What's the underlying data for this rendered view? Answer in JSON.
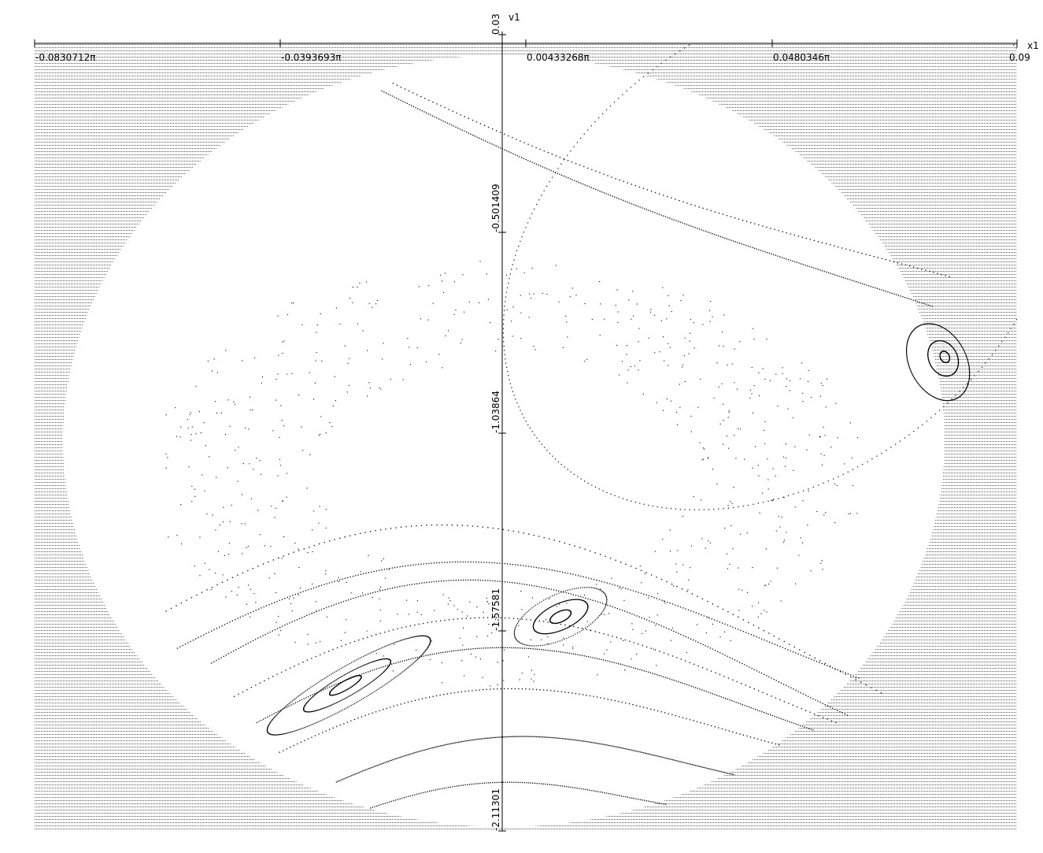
{
  "chart_data": {
    "type": "scatter",
    "title": "",
    "xlabel": "x1",
    "ylabel": "v1",
    "xlim": [
      -0.0830712,
      0.09
    ],
    "ylim": [
      -2.11301,
      0.03
    ],
    "x_ticks": [
      {
        "value": -0.0830712,
        "label": "-0.0830712π"
      },
      {
        "value": -0.0393693,
        "label": "-0.0393693π"
      },
      {
        "value": 0.00433268,
        "label": "0.00433268π"
      },
      {
        "value": 0.0480346,
        "label": "0.0480346π"
      },
      {
        "value": 0.09,
        "label": "0.09"
      }
    ],
    "y_ticks": [
      {
        "value": 0.03,
        "label": "0.03"
      },
      {
        "value": -0.501409,
        "label": "-0.501409"
      },
      {
        "value": -1.03864,
        "label": "-1.03864"
      },
      {
        "value": -1.57581,
        "label": "-1.57581"
      },
      {
        "value": -2.11301,
        "label": "-2.11301"
      }
    ],
    "background_fill": "dotted horizontal lines",
    "colors": {
      "points": "#000000",
      "background_lines": "#000000",
      "axes": "#000000"
    },
    "curves": [
      {
        "kind": "orbit",
        "cx": 0.0487,
        "cy": -0.55,
        "rx": 0.0545,
        "ry": 0.6,
        "tilt": -38,
        "style": "dotted",
        "n": 700
      },
      {
        "kind": "orbit",
        "cx": -0.0278,
        "cy": -1.72,
        "rx": 0.0165,
        "ry": 0.05,
        "tilt": -30,
        "style": "solid",
        "n": 300
      },
      {
        "kind": "orbit",
        "cx": -0.0281,
        "cy": -1.72,
        "rx": 0.0088,
        "ry": 0.028,
        "tilt": -30,
        "style": "solid",
        "n": 240
      },
      {
        "kind": "orbit",
        "cx": -0.0284,
        "cy": -1.72,
        "rx": 0.0032,
        "ry": 0.012,
        "tilt": -30,
        "style": "solid",
        "n": 160
      },
      {
        "kind": "orbit",
        "cx": 0.0095,
        "cy": -1.535,
        "rx": 0.0088,
        "ry": 0.06,
        "tilt": -25,
        "style": "dotted",
        "n": 260
      },
      {
        "kind": "orbit",
        "cx": 0.0095,
        "cy": -1.535,
        "rx": 0.0052,
        "ry": 0.035,
        "tilt": -25,
        "style": "solid",
        "n": 220
      },
      {
        "kind": "orbit",
        "cx": 0.0095,
        "cy": -1.535,
        "rx": 0.002,
        "ry": 0.014,
        "tilt": -25,
        "style": "solid",
        "n": 140
      },
      {
        "kind": "orbit",
        "cx": 0.076,
        "cy": -0.85,
        "rx": 0.005,
        "ry": 0.11,
        "tilt": -28,
        "style": "solid",
        "n": 260
      },
      {
        "kind": "orbit",
        "cx": 0.0769,
        "cy": -0.84,
        "rx": 0.0025,
        "ry": 0.05,
        "tilt": -28,
        "style": "solid",
        "n": 200
      },
      {
        "kind": "orbit",
        "cx": 0.0772,
        "cy": -0.836,
        "rx": 0.0008,
        "ry": 0.016,
        "tilt": -28,
        "style": "solid",
        "n": 120
      }
    ],
    "bands": [
      {
        "x0": -0.058,
        "x1": 0.062,
        "y_left": -1.62,
        "y_right": -1.7,
        "amp": 0.33,
        "style": "solid"
      },
      {
        "x0": -0.06,
        "x1": 0.066,
        "y_left": -1.52,
        "y_right": -1.74,
        "amp": 0.4,
        "style": "dotted"
      },
      {
        "x0": -0.052,
        "x1": 0.06,
        "y_left": -1.66,
        "y_right": -1.8,
        "amp": 0.35,
        "style": "solid"
      },
      {
        "x0": -0.048,
        "x1": 0.058,
        "y_left": -1.75,
        "y_right": -1.82,
        "amp": 0.3,
        "style": "dotted"
      },
      {
        "x0": -0.044,
        "x1": 0.054,
        "y_left": -1.82,
        "y_right": -1.84,
        "amp": 0.26,
        "style": "solid"
      },
      {
        "x0": -0.04,
        "x1": 0.048,
        "y_left": -1.9,
        "y_right": -1.88,
        "amp": 0.2,
        "style": "dotted"
      },
      {
        "x0": -0.03,
        "x1": 0.04,
        "y_left": -1.98,
        "y_right": -1.96,
        "amp": 0.14,
        "style": "solid"
      },
      {
        "x0": -0.024,
        "x1": 0.028,
        "y_left": -2.05,
        "y_right": -2.04,
        "amp": 0.08,
        "style": "dotted"
      },
      {
        "x0": -0.02,
        "x1": 0.078,
        "y_left": -0.1,
        "y_right": -0.62,
        "amp": -0.06,
        "style": "dotted"
      },
      {
        "x0": -0.022,
        "x1": 0.075,
        "y_left": -0.12,
        "y_right": -0.7,
        "amp": -0.05,
        "style": "solid"
      }
    ],
    "chaotic_region": {
      "x_range": [
        -0.06,
        0.07
      ],
      "y_range": [
        -1.75,
        -0.5
      ],
      "density": "scattered dots"
    }
  }
}
